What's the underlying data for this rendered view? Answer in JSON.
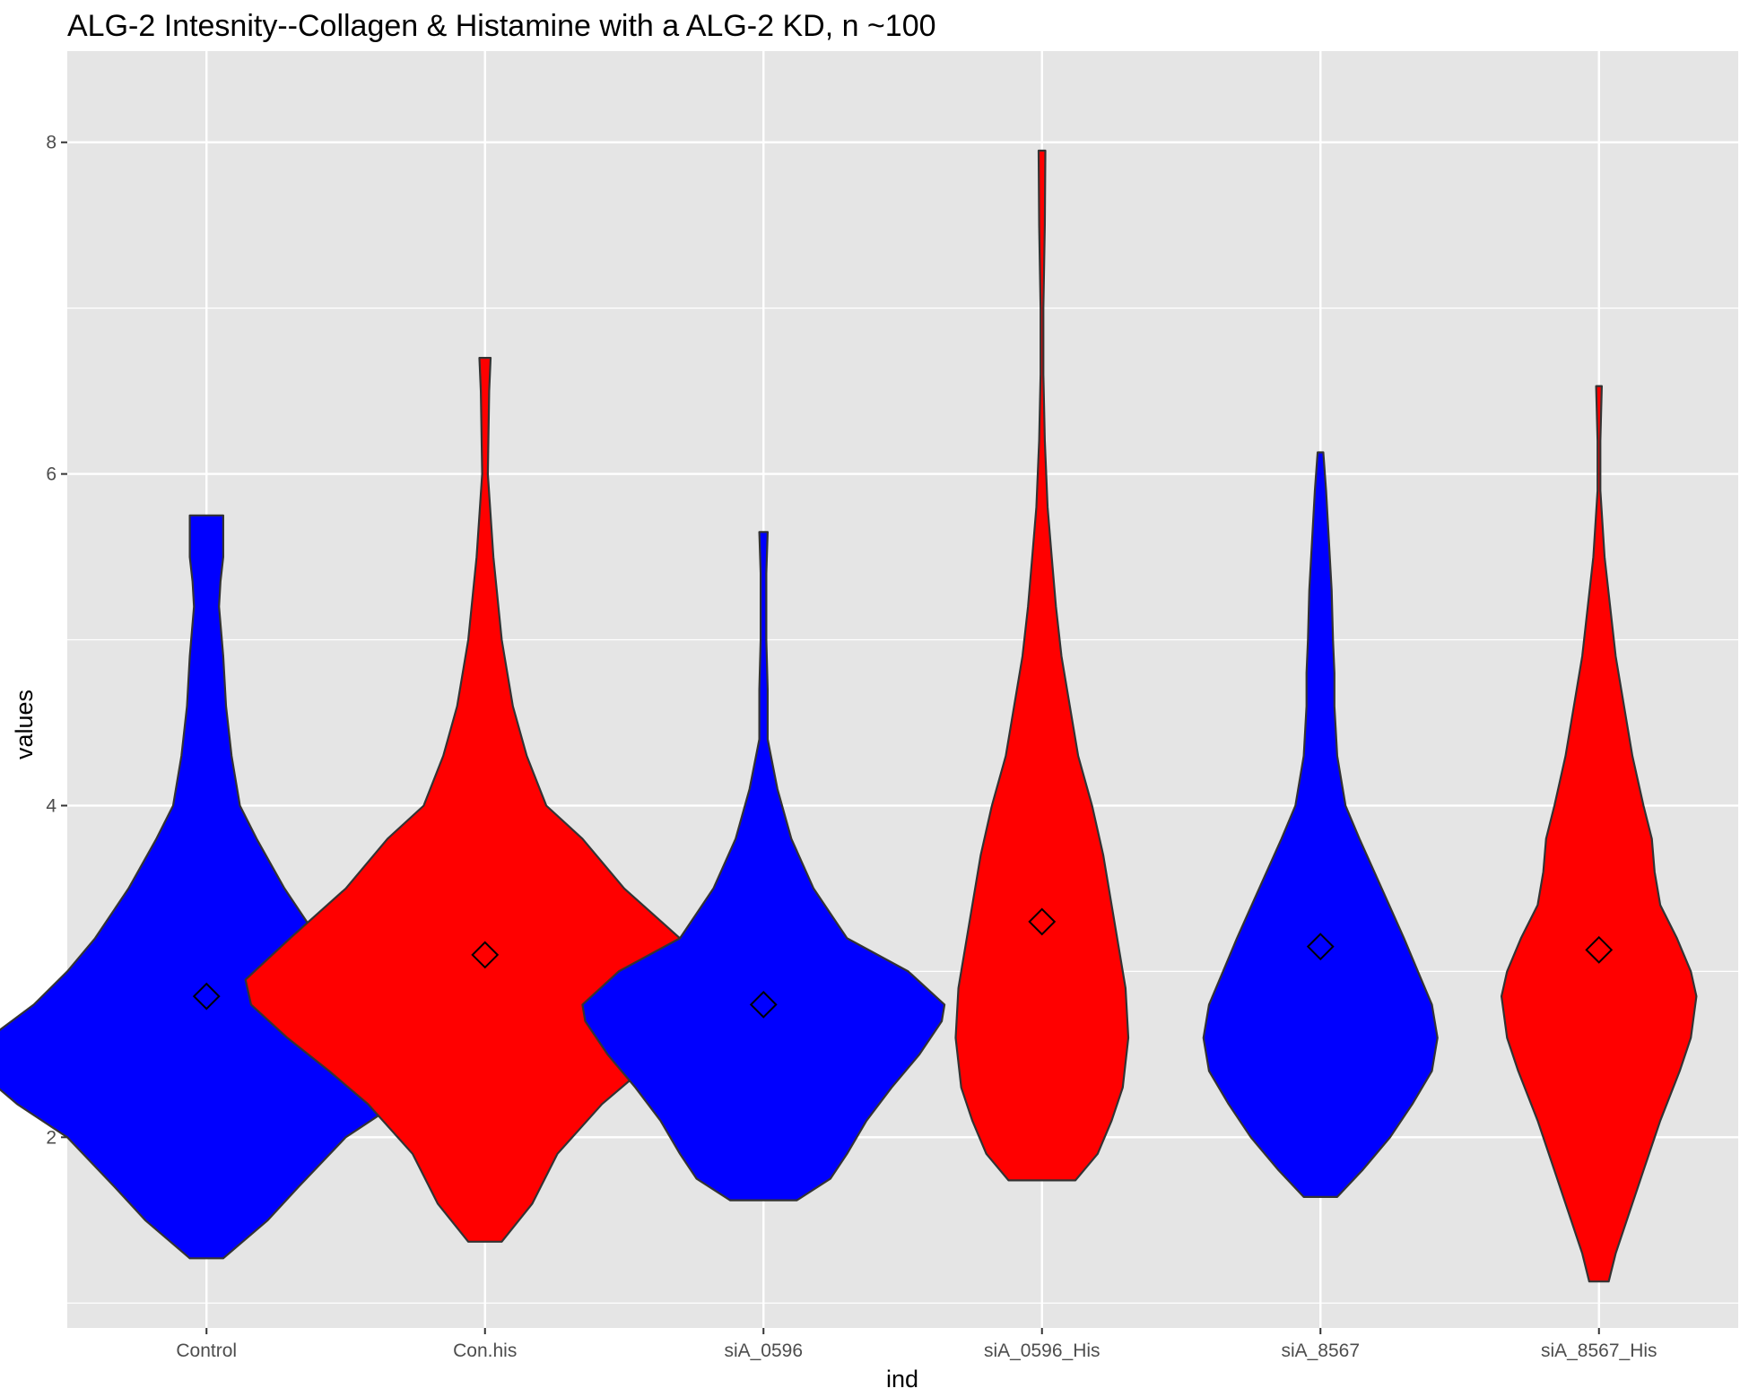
{
  "chart_data": {
    "type": "violin",
    "title": "ALG-2 Intesnity--Collagen & Histamine with a ALG-2 KD, n ~100",
    "xlabel": "ind",
    "ylabel": "values",
    "ylim": [
      0.85,
      8.55
    ],
    "yticks": [
      2,
      4,
      6,
      8
    ],
    "grid": true,
    "legend": "none",
    "categories": [
      "Control",
      "Con.his",
      "siA_0596",
      "siA_0596_His",
      "siA_8567",
      "siA_8567_His"
    ],
    "fill_colors": [
      "#0000ff",
      "#ff0000",
      "#0000ff",
      "#ff0000",
      "#0000ff",
      "#ff0000"
    ],
    "outline_color": "#333333",
    "panel_background": "#e5e5e5",
    "mean_marker": "diamond",
    "means": [
      2.85,
      3.1,
      2.8,
      3.3,
      3.15,
      3.13
    ],
    "distributions": [
      {
        "name": "Control",
        "min": 1.27,
        "max": 5.75,
        "half_widths": [
          [
            1.27,
            0.06
          ],
          [
            1.5,
            0.22
          ],
          [
            1.7,
            0.33
          ],
          [
            2.0,
            0.5
          ],
          [
            2.2,
            0.68
          ],
          [
            2.4,
            0.82
          ],
          [
            2.5,
            0.85
          ],
          [
            2.6,
            0.78
          ],
          [
            2.8,
            0.62
          ],
          [
            3.0,
            0.5
          ],
          [
            3.2,
            0.4
          ],
          [
            3.5,
            0.28
          ],
          [
            3.8,
            0.18
          ],
          [
            4.0,
            0.12
          ],
          [
            4.3,
            0.09
          ],
          [
            4.6,
            0.07
          ],
          [
            4.9,
            0.06
          ],
          [
            5.2,
            0.045
          ],
          [
            5.35,
            0.05
          ],
          [
            5.5,
            0.06
          ],
          [
            5.75,
            0.06
          ]
        ]
      },
      {
        "name": "Con.his",
        "min": 1.37,
        "max": 6.7,
        "half_widths": [
          [
            1.37,
            0.06
          ],
          [
            1.6,
            0.17
          ],
          [
            1.9,
            0.26
          ],
          [
            2.2,
            0.42
          ],
          [
            2.4,
            0.56
          ],
          [
            2.6,
            0.71
          ],
          [
            2.8,
            0.84
          ],
          [
            2.95,
            0.86
          ],
          [
            3.2,
            0.7
          ],
          [
            3.5,
            0.5
          ],
          [
            3.8,
            0.35
          ],
          [
            4.0,
            0.22
          ],
          [
            4.3,
            0.15
          ],
          [
            4.6,
            0.1
          ],
          [
            5.0,
            0.06
          ],
          [
            5.5,
            0.03
          ],
          [
            6.0,
            0.01
          ],
          [
            6.5,
            0.015
          ],
          [
            6.7,
            0.02
          ]
        ]
      },
      {
        "name": "siA_0596",
        "min": 1.62,
        "max": 5.65,
        "half_widths": [
          [
            1.62,
            0.12
          ],
          [
            1.75,
            0.24
          ],
          [
            1.9,
            0.3
          ],
          [
            2.1,
            0.37
          ],
          [
            2.3,
            0.46
          ],
          [
            2.5,
            0.56
          ],
          [
            2.7,
            0.64
          ],
          [
            2.8,
            0.65
          ],
          [
            3.0,
            0.52
          ],
          [
            3.2,
            0.3
          ],
          [
            3.5,
            0.18
          ],
          [
            3.8,
            0.1
          ],
          [
            4.1,
            0.05
          ],
          [
            4.4,
            0.015
          ],
          [
            4.7,
            0.015
          ],
          [
            5.0,
            0.01
          ],
          [
            5.2,
            0.01
          ],
          [
            5.4,
            0.01
          ],
          [
            5.65,
            0.015
          ]
        ]
      },
      {
        "name": "siA_0596_His",
        "min": 1.74,
        "max": 7.95,
        "half_widths": [
          [
            1.74,
            0.12
          ],
          [
            1.9,
            0.2
          ],
          [
            2.1,
            0.25
          ],
          [
            2.3,
            0.29
          ],
          [
            2.6,
            0.31
          ],
          [
            2.9,
            0.3
          ],
          [
            3.1,
            0.28
          ],
          [
            3.4,
            0.25
          ],
          [
            3.7,
            0.22
          ],
          [
            4.0,
            0.18
          ],
          [
            4.3,
            0.13
          ],
          [
            4.6,
            0.1
          ],
          [
            4.9,
            0.07
          ],
          [
            5.2,
            0.05
          ],
          [
            5.5,
            0.035
          ],
          [
            5.8,
            0.02
          ],
          [
            6.2,
            0.01
          ],
          [
            6.6,
            0.005
          ],
          [
            7.0,
            0.005
          ],
          [
            7.5,
            0.01
          ],
          [
            7.95,
            0.012
          ]
        ]
      },
      {
        "name": "siA_8567",
        "min": 1.64,
        "max": 6.13,
        "half_widths": [
          [
            1.64,
            0.06
          ],
          [
            1.8,
            0.15
          ],
          [
            2.0,
            0.25
          ],
          [
            2.2,
            0.33
          ],
          [
            2.4,
            0.4
          ],
          [
            2.6,
            0.42
          ],
          [
            2.8,
            0.4
          ],
          [
            3.0,
            0.35
          ],
          [
            3.2,
            0.3
          ],
          [
            3.5,
            0.22
          ],
          [
            3.8,
            0.14
          ],
          [
            4.0,
            0.09
          ],
          [
            4.3,
            0.06
          ],
          [
            4.6,
            0.05
          ],
          [
            4.8,
            0.05
          ],
          [
            5.0,
            0.045
          ],
          [
            5.3,
            0.04
          ],
          [
            5.6,
            0.03
          ],
          [
            5.9,
            0.02
          ],
          [
            6.13,
            0.01
          ]
        ]
      },
      {
        "name": "siA_8567_His",
        "min": 1.13,
        "max": 6.53,
        "half_widths": [
          [
            1.13,
            0.035
          ],
          [
            1.3,
            0.06
          ],
          [
            1.5,
            0.1
          ],
          [
            1.8,
            0.16
          ],
          [
            2.1,
            0.22
          ],
          [
            2.4,
            0.29
          ],
          [
            2.6,
            0.33
          ],
          [
            2.85,
            0.35
          ],
          [
            3.0,
            0.33
          ],
          [
            3.2,
            0.28
          ],
          [
            3.4,
            0.22
          ],
          [
            3.6,
            0.2
          ],
          [
            3.8,
            0.19
          ],
          [
            4.0,
            0.16
          ],
          [
            4.3,
            0.12
          ],
          [
            4.6,
            0.09
          ],
          [
            4.9,
            0.06
          ],
          [
            5.2,
            0.04
          ],
          [
            5.5,
            0.02
          ],
          [
            5.9,
            0.005
          ],
          [
            6.2,
            0.005
          ],
          [
            6.53,
            0.01
          ]
        ]
      }
    ]
  }
}
